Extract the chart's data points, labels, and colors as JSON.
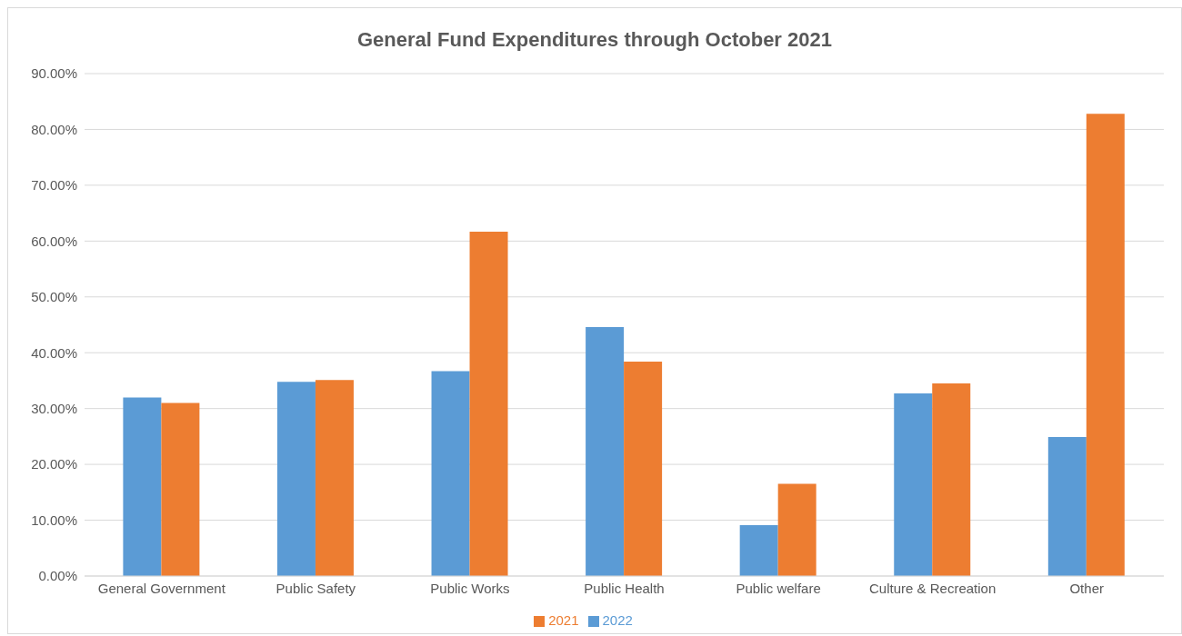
{
  "chart_data": {
    "type": "bar",
    "title": "General Fund Expenditures through October 2021",
    "categories": [
      "General Government",
      "Public Safety",
      "Public Works",
      "Public Health",
      "Public welfare",
      "Culture & Recreation",
      "Other"
    ],
    "series": [
      {
        "name": "2022",
        "color": "#5b9bd5",
        "values": [
          32.0,
          34.8,
          36.7,
          44.6,
          9.1,
          32.7,
          24.9
        ]
      },
      {
        "name": "2021",
        "color": "#ed7d31",
        "values": [
          31.0,
          35.1,
          61.7,
          38.4,
          16.5,
          34.5,
          82.8
        ]
      }
    ],
    "ylim": [
      0,
      90
    ],
    "yticks": [
      {
        "value": 0,
        "label": "0.00%"
      },
      {
        "value": 10,
        "label": "10.00%"
      },
      {
        "value": 20,
        "label": "20.00%"
      },
      {
        "value": 30,
        "label": "30.00%"
      },
      {
        "value": 40,
        "label": "40.00%"
      },
      {
        "value": 50,
        "label": "50.00%"
      },
      {
        "value": 60,
        "label": "60.00%"
      },
      {
        "value": 70,
        "label": "70.00%"
      },
      {
        "value": 80,
        "label": "80.00%"
      },
      {
        "value": 90,
        "label": "90.00%"
      }
    ],
    "grid": "y",
    "legend": "bottom"
  }
}
